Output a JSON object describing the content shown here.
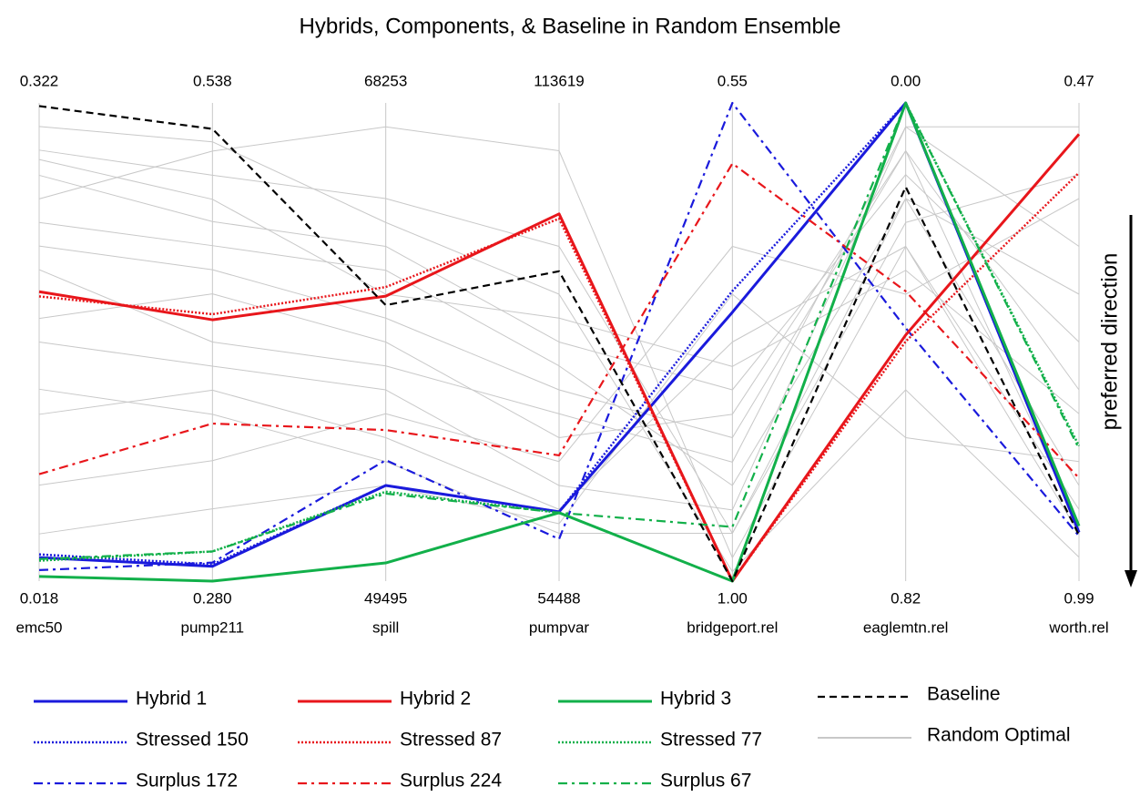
{
  "chart_data": {
    "type": "parallel",
    "title": "Hybrids, Components, & Baseline in Random Ensemble",
    "annotation": "preferred direction",
    "axes": [
      {
        "name": "emc50",
        "top": 0.322,
        "bottom": 0.018
      },
      {
        "name": "pump211",
        "top": 0.538,
        "bottom": {
          "value": 0.28,
          "label": "0.280"
        }
      },
      {
        "name": "spill",
        "top": 68253,
        "bottom": 49495
      },
      {
        "name": "pumpvar",
        "top": 113619,
        "bottom": 54488
      },
      {
        "name": "bridgeport.rel",
        "top": 0.55,
        "bottom": {
          "value": 1,
          "label": "1.00"
        }
      },
      {
        "name": "eaglemtn.rel",
        "top": {
          "value": 0,
          "label": "0.00"
        },
        "bottom": 0.82
      },
      {
        "name": "worth.rel",
        "top": 0.47,
        "bottom": 0.99
      }
    ],
    "series": [
      {
        "name": "Hybrid 1",
        "color": "#1a1adc",
        "style": "solid",
        "values": [
          0.033,
          0.288,
          53247,
          63062,
          0.747,
          0.0,
          0.937
        ]
      },
      {
        "name": "Stressed 150",
        "color": "#1a1adc",
        "style": "dotted",
        "values": [
          0.035,
          0.289,
          53247,
          63062,
          0.727,
          0.0,
          0.937
        ]
      },
      {
        "name": "Surplus 172",
        "color": "#1a1adc",
        "style": "dashdot",
        "values": [
          0.025,
          0.29,
          54241,
          59691,
          0.55,
          0.386,
          0.941
        ]
      },
      {
        "name": "Hybrid 2",
        "color": "#e8161b",
        "style": "solid",
        "values": [
          0.202,
          0.421,
          60675,
          99901,
          1.0,
          0.398,
          0.504
        ]
      },
      {
        "name": "Stressed 87",
        "color": "#e8161b",
        "style": "dotted",
        "values": [
          0.199,
          0.424,
          61031,
          99309,
          1.0,
          0.409,
          0.546
        ]
      },
      {
        "name": "Surplus 224",
        "color": "#e8161b",
        "style": "dashdot",
        "values": [
          0.086,
          0.365,
          55422,
          70040,
          0.607,
          0.323,
          0.878
        ]
      },
      {
        "name": "Hybrid 3",
        "color": "#12b04a",
        "style": "solid",
        "values": [
          0.021,
          0.28,
          50208,
          62944,
          1.0,
          0.0,
          0.93
        ]
      },
      {
        "name": "Stressed 77",
        "color": "#12b04a",
        "style": "dotted",
        "values": [
          0.031,
          0.296,
          53003,
          62944,
          1.0,
          0.0,
          0.843
        ]
      },
      {
        "name": "Surplus 67",
        "color": "#12b04a",
        "style": "dashdot",
        "values": [
          0.032,
          0.296,
          52928,
          62944,
          0.949,
          0.0,
          0.846
        ]
      },
      {
        "name": "Baseline",
        "color": "#000000",
        "style": "dashed",
        "values": [
          0.32,
          0.524,
          60318,
          92805,
          1.0,
          0.144,
          0.94
        ]
      },
      {
        "name": "Random Optimal",
        "color": "#c8c8c8",
        "style": "solid",
        "lines": [
          [
            0.292,
            0.499,
            64501,
            95880,
            0.955,
            0.164,
            0.886
          ],
          [
            0.261,
            0.512,
            67315,
            107706,
            0.978,
            0.246,
            0.912
          ],
          [
            0.231,
            0.448,
            59812,
            78140,
            0.865,
            0.082,
            0.782
          ],
          [
            0.17,
            0.396,
            56998,
            66314,
            0.933,
            0.041,
            0.626
          ],
          [
            0.124,
            0.383,
            55122,
            63358,
            0.775,
            0.246,
            0.938
          ],
          [
            0.276,
            0.474,
            62626,
            84054,
            0.82,
            0.123,
            0.73
          ],
          [
            0.079,
            0.345,
            56060,
            69271,
            0.685,
            0.328,
            0.574
          ],
          [
            0.307,
            0.517,
            63564,
            89967,
            0.991,
            0.492,
            0.964
          ],
          [
            0.216,
            0.409,
            57936,
            75184,
            0.888,
            0.041,
            0.496
          ],
          [
            0.048,
            0.319,
            53247,
            61584,
            0.73,
            0.574,
            0.86
          ],
          [
            0.246,
            0.461,
            61688,
            81097,
            0.91,
            0.164,
            0.678
          ],
          [
            0.185,
            0.435,
            58874,
            72227,
            0.843,
            0.082,
            0.928
          ],
          [
            0.14,
            0.37,
            54185,
            60401,
            0.955,
            0.205,
            0.548
          ],
          [
            0.286,
            0.486,
            60750,
            87010,
            0.798,
            0.287,
            0.808
          ]
        ]
      }
    ]
  }
}
